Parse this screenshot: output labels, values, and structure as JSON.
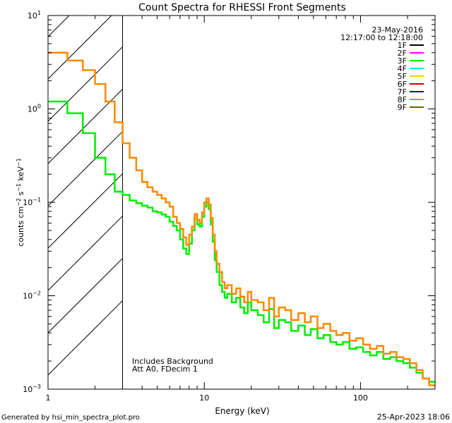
{
  "chart_data": {
    "type": "line",
    "title": "Count Spectra for RHESSI Front Segments",
    "xlabel": "Energy (keV)",
    "ylabel": "counts cm^-2 s^-1 keV^-1",
    "ylabel_parts": [
      "counts cm",
      "−2",
      " s",
      "−1",
      " keV",
      "−1"
    ],
    "x_scale": "log",
    "y_scale": "log",
    "xlim": [
      1,
      300
    ],
    "ylim": [
      0.001,
      10
    ],
    "x_ticks": [
      {
        "value": 1,
        "label": "1"
      },
      {
        "value": 10,
        "label": "10"
      },
      {
        "value": 100,
        "label": "100"
      }
    ],
    "y_ticks": [
      {
        "value": 0.001,
        "base": "10",
        "exp": "−3"
      },
      {
        "value": 0.01,
        "base": "10",
        "exp": "−2"
      },
      {
        "value": 0.1,
        "base": "10",
        "exp": "−1"
      },
      {
        "value": 1,
        "base": "10",
        "exp": "0"
      },
      {
        "value": 10,
        "base": "10",
        "exp": "1"
      }
    ],
    "date": "23-May-2016",
    "time_range": "12:17:00 to 12:18:00",
    "legend": [
      {
        "label": "1F",
        "color": "#000000"
      },
      {
        "label": "2F",
        "color": "#ff00ff"
      },
      {
        "label": "3F",
        "color": "#00ee00"
      },
      {
        "label": "4F",
        "color": "#00e5ff"
      },
      {
        "label": "5F",
        "color": "#ffcc00"
      },
      {
        "label": "6F",
        "color": "#cc0000"
      },
      {
        "label": "7F",
        "color": "#0000cc"
      },
      {
        "label": "8F",
        "color": "#ff8800"
      },
      {
        "label": "9F",
        "color": "#666600"
      }
    ],
    "annotations": [
      "Includes Background",
      "Att A0, FDecim 1"
    ],
    "shaded_region": {
      "xmin": 1,
      "xmax": 3,
      "style": "diagonal-hatch"
    },
    "series": [
      {
        "name": "8F",
        "color": "#ff8800",
        "edges": [
          1.0,
          1.33,
          1.67,
          2.0,
          2.33,
          2.67,
          3.0,
          3.33,
          3.67,
          4.0,
          4.33,
          4.67,
          5.0,
          5.33,
          5.67,
          6.0,
          6.33,
          6.67,
          7.0,
          7.33,
          7.67,
          8.0,
          8.33,
          8.67,
          9.0,
          9.33,
          9.67,
          10.0,
          10.33,
          10.67,
          11.0,
          11.33,
          11.67,
          12.0,
          12.5,
          13.0,
          13.5,
          14.0,
          15.0,
          16.0,
          17.0,
          18.0,
          19.0,
          20.0,
          22.0,
          24.0,
          26.0,
          28.0,
          30.0,
          33.0,
          36.0,
          40.0,
          44.0,
          48.0,
          53.0,
          58.0,
          64.0,
          70.0,
          77.0,
          85.0,
          94.0,
          104.0,
          115.0,
          127.0,
          140.0,
          155.0,
          170.0,
          188.0,
          207.0,
          228.0,
          250.0,
          275.0,
          300.0
        ],
        "values": [
          4.0,
          3.3,
          2.6,
          1.85,
          1.2,
          0.72,
          0.43,
          0.3,
          0.22,
          0.165,
          0.145,
          0.13,
          0.12,
          0.11,
          0.1,
          0.09,
          0.07,
          0.06,
          0.052,
          0.042,
          0.035,
          0.045,
          0.055,
          0.075,
          0.065,
          0.06,
          0.078,
          0.1,
          0.11,
          0.095,
          0.068,
          0.045,
          0.03,
          0.022,
          0.018,
          0.014,
          0.012,
          0.013,
          0.0105,
          0.012,
          0.0098,
          0.0085,
          0.011,
          0.009,
          0.0085,
          0.007,
          0.0095,
          0.006,
          0.0075,
          0.007,
          0.0055,
          0.0065,
          0.0052,
          0.006,
          0.0045,
          0.005,
          0.0042,
          0.0038,
          0.004,
          0.0033,
          0.0035,
          0.003,
          0.0027,
          0.0029,
          0.0024,
          0.0025,
          0.0022,
          0.0021,
          0.0019,
          0.0016,
          0.0013,
          0.0011
        ]
      },
      {
        "name": "3F",
        "color": "#00ee00",
        "edges": [
          1.0,
          1.33,
          1.67,
          2.0,
          2.33,
          2.67,
          3.0,
          3.33,
          3.67,
          4.0,
          4.33,
          4.67,
          5.0,
          5.33,
          5.67,
          6.0,
          6.33,
          6.67,
          7.0,
          7.33,
          7.67,
          8.0,
          8.33,
          8.67,
          9.0,
          9.33,
          9.67,
          10.0,
          10.33,
          10.67,
          11.0,
          11.33,
          11.67,
          12.0,
          12.5,
          13.0,
          13.5,
          14.0,
          15.0,
          16.0,
          17.0,
          18.0,
          19.0,
          20.0,
          22.0,
          24.0,
          26.0,
          28.0,
          30.0,
          33.0,
          36.0,
          40.0,
          44.0,
          48.0,
          53.0,
          58.0,
          64.0,
          70.0,
          77.0,
          85.0,
          94.0,
          104.0,
          115.0,
          127.0,
          140.0,
          155.0,
          170.0,
          188.0,
          207.0,
          228.0,
          250.0,
          275.0,
          300.0
        ],
        "values": [
          1.2,
          0.9,
          0.55,
          0.3,
          0.2,
          0.13,
          0.12,
          0.105,
          0.098,
          0.092,
          0.088,
          0.08,
          0.078,
          0.074,
          0.07,
          0.062,
          0.056,
          0.05,
          0.04,
          0.032,
          0.028,
          0.036,
          0.05,
          0.068,
          0.058,
          0.055,
          0.07,
          0.09,
          0.1,
          0.085,
          0.058,
          0.038,
          0.024,
          0.018,
          0.013,
          0.011,
          0.0095,
          0.0105,
          0.0085,
          0.0095,
          0.0075,
          0.0065,
          0.0085,
          0.007,
          0.0062,
          0.0052,
          0.0072,
          0.0045,
          0.0055,
          0.0052,
          0.0042,
          0.0048,
          0.0038,
          0.0044,
          0.0035,
          0.0038,
          0.0032,
          0.003,
          0.0032,
          0.0027,
          0.0028,
          0.0025,
          0.0023,
          0.0025,
          0.0021,
          0.0022,
          0.002,
          0.0019,
          0.0017,
          0.0015,
          0.0013,
          0.0012
        ]
      }
    ]
  },
  "footer": {
    "generated_by": "Generated by hsi_min_spectra_plot.pro",
    "date_time": "25-Apr-2023 18:06"
  }
}
